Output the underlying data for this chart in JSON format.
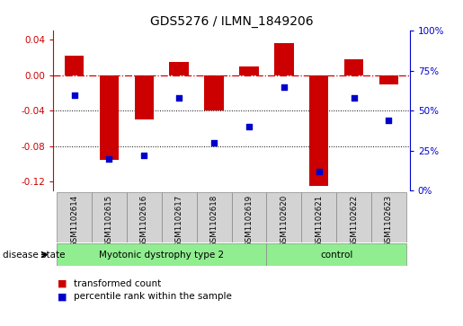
{
  "title": "GDS5276 / ILMN_1849206",
  "samples": [
    "GSM1102614",
    "GSM1102615",
    "GSM1102616",
    "GSM1102617",
    "GSM1102618",
    "GSM1102619",
    "GSM1102620",
    "GSM1102621",
    "GSM1102622",
    "GSM1102623"
  ],
  "transformed_count": [
    0.022,
    -0.095,
    -0.05,
    0.015,
    -0.04,
    0.01,
    0.036,
    -0.125,
    0.018,
    -0.01
  ],
  "percentile_rank": [
    60,
    20,
    22,
    58,
    30,
    40,
    65,
    12,
    58,
    44
  ],
  "disease_state": [
    "Myotonic dystrophy type 2",
    "Myotonic dystrophy type 2",
    "Myotonic dystrophy type 2",
    "Myotonic dystrophy type 2",
    "Myotonic dystrophy type 2",
    "Myotonic dystrophy type 2",
    "control",
    "control",
    "control",
    "control"
  ],
  "bar_color": "#CC0000",
  "scatter_color": "#0000CC",
  "ylim_left": [
    -0.13,
    0.05
  ],
  "ylim_right": [
    0,
    100
  ],
  "yticks_left": [
    -0.12,
    -0.08,
    -0.04,
    0.0,
    0.04
  ],
  "yticks_right": [
    0,
    25,
    50,
    75,
    100
  ],
  "hline_y": 0.0,
  "dotted_lines": [
    -0.04,
    -0.08
  ],
  "legend_items": [
    "transformed count",
    "percentile rank within the sample"
  ],
  "legend_colors": [
    "#CC0000",
    "#0000CC"
  ],
  "disease_state_label": "disease state",
  "label_box_color": "#d3d3d3",
  "group_color": "#90EE90",
  "bar_width": 0.55
}
